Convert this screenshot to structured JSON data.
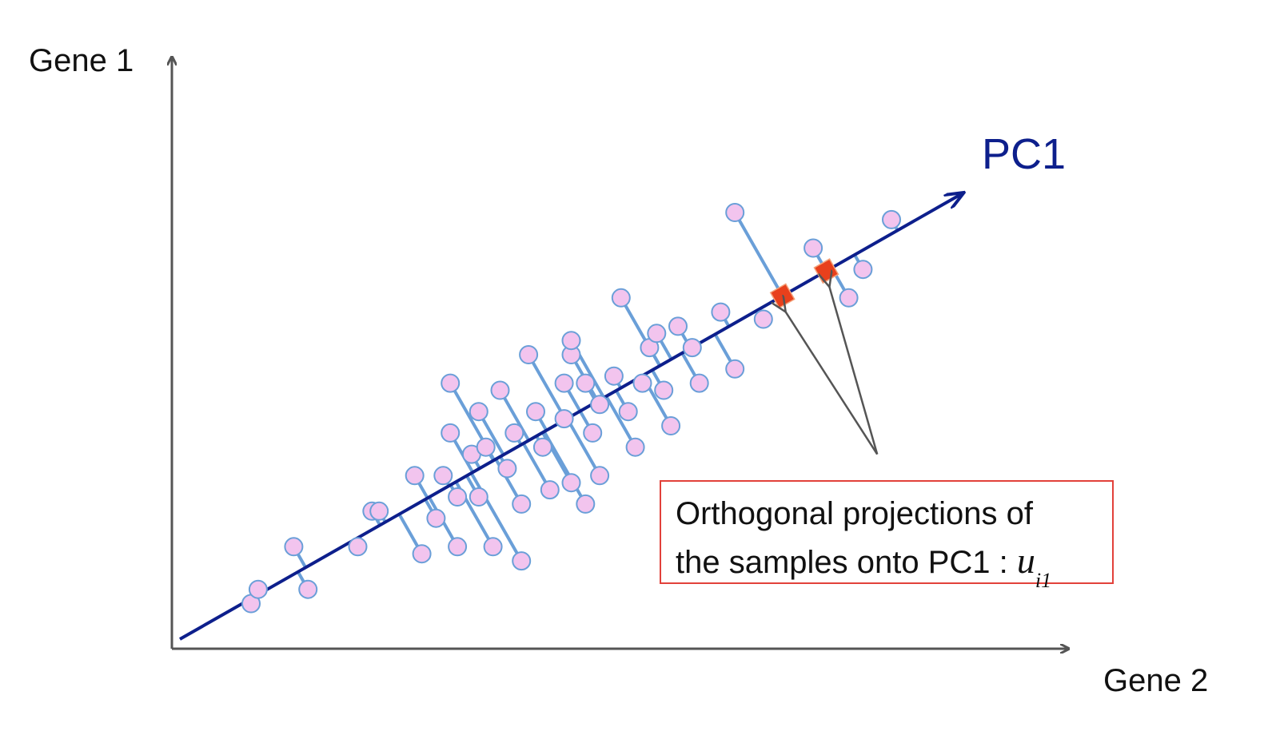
{
  "axes": {
    "y_label": "Gene 1",
    "x_label": "Gene 2"
  },
  "pc_label": "PC1",
  "note": {
    "line1": "Orthogonal projections of",
    "line2_text": "the samples onto PC1 : ",
    "symbol": "u",
    "subscript": "i1"
  },
  "colors": {
    "axis": "#555555",
    "pc_line": "#0d1f8c",
    "point_fill": "#f2c4ee",
    "point_stroke": "#6a9fd8",
    "projection_line": "#6a9fd8",
    "projection_marker": "#e8401c",
    "note_border": "#e2413a",
    "pointer_arrow": "#555555"
  },
  "pc1": {
    "slope": 0.57,
    "intercept": 0.0
  },
  "samples": [
    {
      "g2": 10,
      "g1": 5
    },
    {
      "g2": 11,
      "g1": 7
    },
    {
      "g2": 16,
      "g1": 13
    },
    {
      "g2": 18,
      "g1": 7
    },
    {
      "g2": 25,
      "g1": 13
    },
    {
      "g2": 27,
      "g1": 18
    },
    {
      "g2": 28,
      "g1": 18
    },
    {
      "g2": 33,
      "g1": 23
    },
    {
      "g2": 34,
      "g1": 12
    },
    {
      "g2": 36,
      "g1": 17
    },
    {
      "g2": 37,
      "g1": 23
    },
    {
      "g2": 38,
      "g1": 36
    },
    {
      "g2": 38,
      "g1": 29
    },
    {
      "g2": 39,
      "g1": 13
    },
    {
      "g2": 39,
      "g1": 20
    },
    {
      "g2": 41,
      "g1": 26
    },
    {
      "g2": 42,
      "g1": 32
    },
    {
      "g2": 42,
      "g1": 20
    },
    {
      "g2": 43,
      "g1": 27
    },
    {
      "g2": 44,
      "g1": 13
    },
    {
      "g2": 45,
      "g1": 35
    },
    {
      "g2": 46,
      "g1": 24
    },
    {
      "g2": 47,
      "g1": 29
    },
    {
      "g2": 48,
      "g1": 19
    },
    {
      "g2": 48,
      "g1": 11
    },
    {
      "g2": 49,
      "g1": 40
    },
    {
      "g2": 50,
      "g1": 32
    },
    {
      "g2": 51,
      "g1": 27
    },
    {
      "g2": 52,
      "g1": 21
    },
    {
      "g2": 54,
      "g1": 36
    },
    {
      "g2": 54,
      "g1": 31
    },
    {
      "g2": 55,
      "g1": 22
    },
    {
      "g2": 55,
      "g1": 40
    },
    {
      "g2": 55,
      "g1": 42
    },
    {
      "g2": 57,
      "g1": 36
    },
    {
      "g2": 57,
      "g1": 19
    },
    {
      "g2": 58,
      "g1": 29
    },
    {
      "g2": 59,
      "g1": 23
    },
    {
      "g2": 59,
      "g1": 33
    },
    {
      "g2": 61,
      "g1": 37
    },
    {
      "g2": 62,
      "g1": 48
    },
    {
      "g2": 63,
      "g1": 32
    },
    {
      "g2": 64,
      "g1": 27
    },
    {
      "g2": 65,
      "g1": 36
    },
    {
      "g2": 66,
      "g1": 41
    },
    {
      "g2": 67,
      "g1": 43
    },
    {
      "g2": 68,
      "g1": 35
    },
    {
      "g2": 69,
      "g1": 30
    },
    {
      "g2": 70,
      "g1": 44
    },
    {
      "g2": 72,
      "g1": 41
    },
    {
      "g2": 73,
      "g1": 36
    },
    {
      "g2": 76,
      "g1": 46
    },
    {
      "g2": 78,
      "g1": 38
    },
    {
      "g2": 82,
      "g1": 45
    },
    {
      "g2": 78,
      "g1": 60
    },
    {
      "g2": 89,
      "g1": 55
    },
    {
      "g2": 94,
      "g1": 48
    },
    {
      "g2": 96,
      "g1": 52
    },
    {
      "g2": 100,
      "g1": 59
    }
  ],
  "highlighted_samples": [
    54,
    55
  ],
  "note_pointer_origin": {
    "g2": 98,
    "g1": 26
  }
}
